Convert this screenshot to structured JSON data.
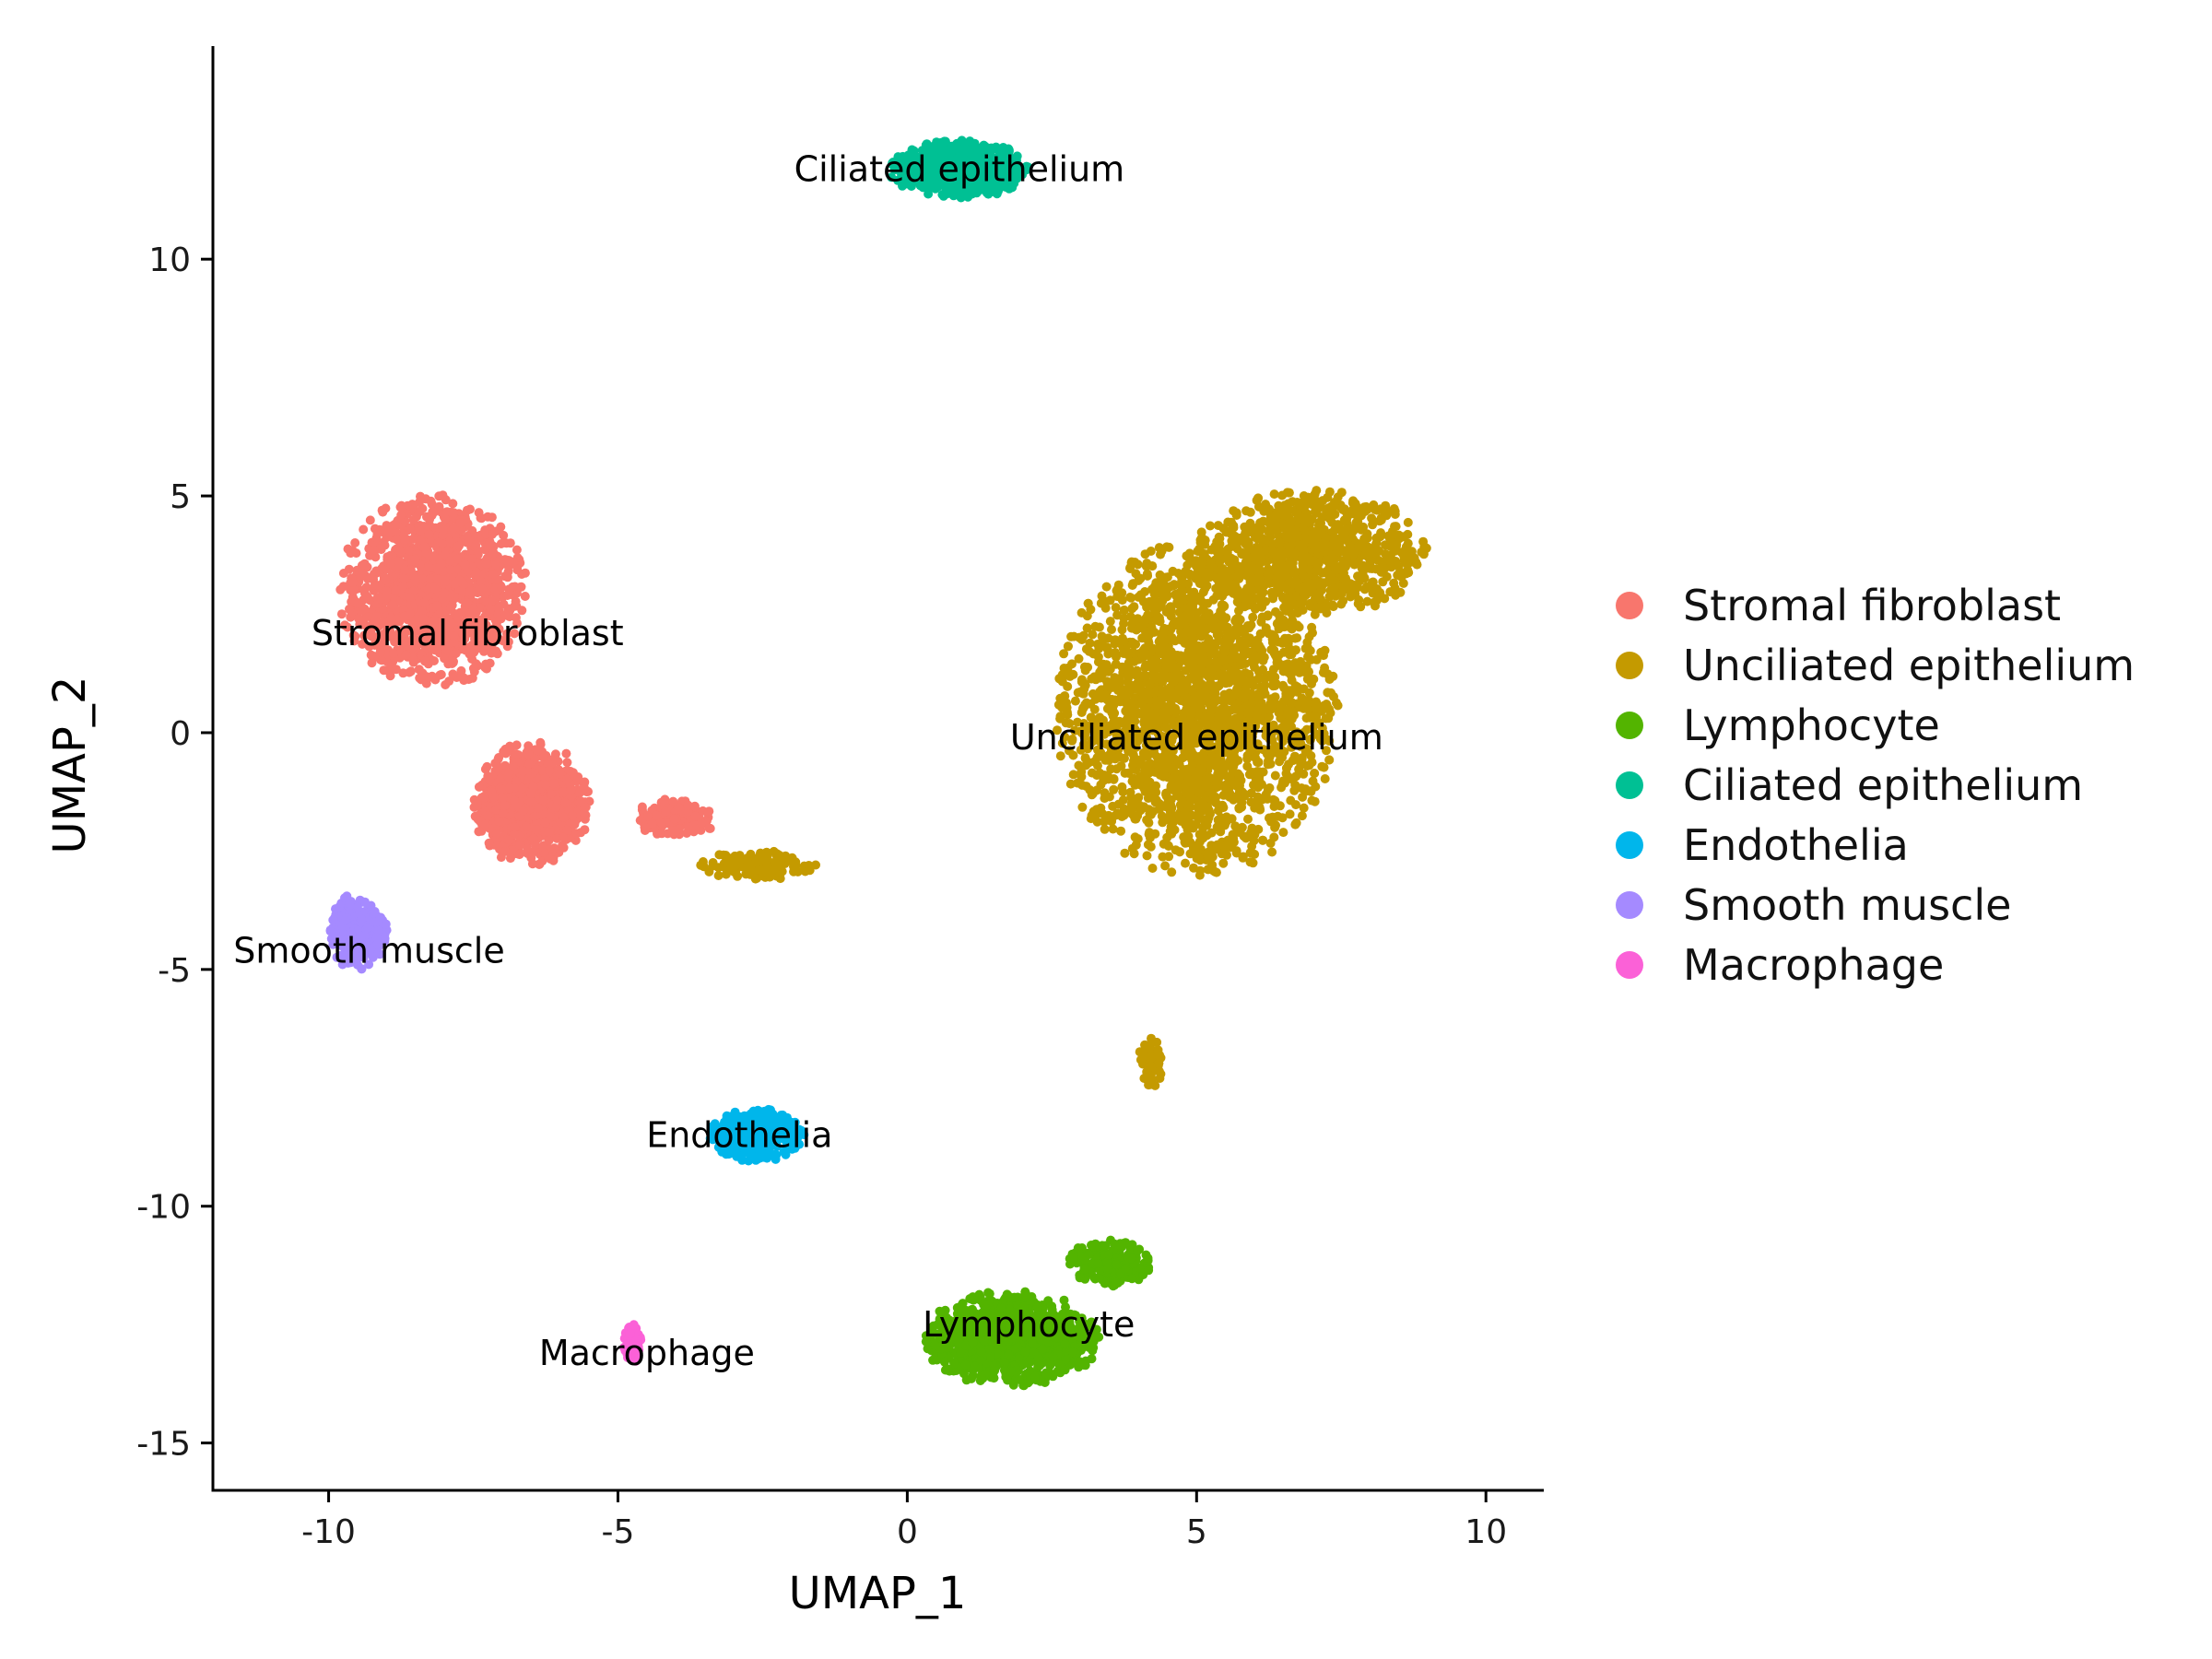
{
  "chart_data": {
    "type": "scatter",
    "xlabel": "UMAP_1",
    "ylabel": "UMAP_2",
    "xlim": [
      -12,
      11
    ],
    "ylim": [
      -16,
      14.5
    ],
    "x_ticks": [
      -10,
      -5,
      0,
      5,
      10
    ],
    "y_ticks": [
      -15,
      -10,
      -5,
      0,
      5,
      10
    ],
    "grid": false,
    "legend_position": "right",
    "series": [
      {
        "name": "Stromal fibroblast",
        "color": "#F8766D",
        "label": "Stromal fibroblast",
        "label_pos": [
          -7.6,
          2.1
        ],
        "clusters": [
          {
            "center": [
              -8.2,
              3.0
            ],
            "spread": [
              1.6,
              2.0
            ],
            "n": 1400
          },
          {
            "center": [
              -6.5,
              -1.5
            ],
            "spread": [
              1.0,
              1.3
            ],
            "n": 800
          },
          {
            "center": [
              -4.0,
              -1.8
            ],
            "spread": [
              0.7,
              0.4
            ],
            "n": 120
          }
        ]
      },
      {
        "name": "Unciliated epithelium",
        "color": "#C49A00",
        "label": "Unciliated epithelium",
        "label_pos": [
          5.0,
          -0.1
        ],
        "clusters": [
          {
            "center": [
              5.0,
              0.5
            ],
            "spread": [
              2.4,
              3.5
            ],
            "n": 2600
          },
          {
            "center": [
              7.0,
              3.8
            ],
            "spread": [
              2.0,
              1.3
            ],
            "n": 900
          },
          {
            "center": [
              -2.6,
              -2.8
            ],
            "spread": [
              1.0,
              0.3
            ],
            "n": 120
          },
          {
            "center": [
              4.2,
              -7.0
            ],
            "spread": [
              0.2,
              0.6
            ],
            "n": 60
          }
        ]
      },
      {
        "name": "Lymphocyte",
        "color": "#53B400",
        "label": "Lymphocyte",
        "label_pos": [
          2.1,
          -12.5
        ],
        "clusters": [
          {
            "center": [
              1.8,
              -12.8
            ],
            "spread": [
              1.5,
              1.0
            ],
            "n": 1000
          },
          {
            "center": [
              3.5,
              -11.2
            ],
            "spread": [
              0.7,
              0.5
            ],
            "n": 200
          }
        ]
      },
      {
        "name": "Ciliated epithelium",
        "color": "#00C094",
        "label": "Ciliated epithelium",
        "label_pos": [
          0.9,
          11.9
        ],
        "clusters": [
          {
            "center": [
              0.9,
              11.9
            ],
            "spread": [
              1.2,
              0.6
            ],
            "n": 700
          }
        ]
      },
      {
        "name": "Endothelia",
        "color": "#00B6EB",
        "label": "Endothelia",
        "label_pos": [
          -2.9,
          -8.5
        ],
        "clusters": [
          {
            "center": [
              -2.6,
              -8.5
            ],
            "spread": [
              0.8,
              0.55
            ],
            "n": 450
          }
        ]
      },
      {
        "name": "Smooth muscle",
        "color": "#A58AFF",
        "label": "Smooth muscle",
        "label_pos": [
          -9.3,
          -4.6
        ],
        "clusters": [
          {
            "center": [
              -9.5,
              -4.2
            ],
            "spread": [
              0.5,
              0.8
            ],
            "n": 320
          }
        ]
      },
      {
        "name": "Macrophage",
        "color": "#FB61D7",
        "label": "Macrophage",
        "label_pos": [
          -4.5,
          -13.1
        ],
        "clusters": [
          {
            "center": [
              -4.75,
              -12.9
            ],
            "spread": [
              0.15,
              0.4
            ],
            "n": 90
          }
        ]
      }
    ]
  }
}
